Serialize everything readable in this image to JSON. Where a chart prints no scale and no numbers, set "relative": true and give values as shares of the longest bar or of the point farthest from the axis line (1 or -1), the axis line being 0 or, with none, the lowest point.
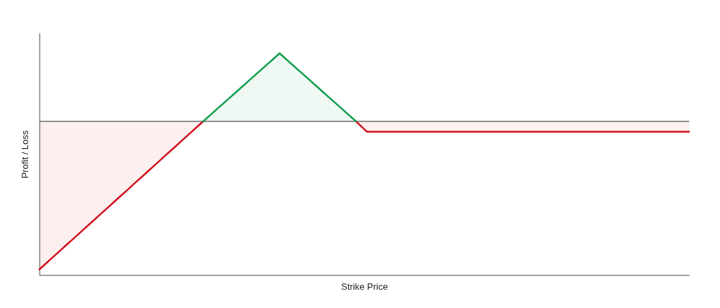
{
  "chart_data": {
    "type": "area",
    "relative": true,
    "xlabel": "Strike Price",
    "ylabel": "Profit / Loss",
    "tick_labels": false,
    "categories": [
      null,
      null,
      null,
      null,
      null,
      null,
      null,
      null,
      null,
      null,
      null,
      null,
      null,
      null,
      null,
      null,
      null,
      null,
      null,
      null,
      null,
      null,
      null,
      null,
      null,
      null,
      null,
      null,
      null,
      null,
      null,
      null,
      null,
      null,
      null,
      null,
      null,
      null,
      null,
      null,
      null,
      null,
      null,
      null,
      null,
      null,
      null,
      null,
      null,
      null,
      null,
      null,
      null,
      null,
      null,
      null,
      null,
      null,
      null,
      null,
      null,
      null,
      null,
      null,
      null,
      null,
      null,
      null,
      null,
      null,
      null,
      null,
      null,
      null,
      null,
      null,
      null,
      null,
      null,
      null,
      null,
      null,
      null,
      null,
      null,
      null,
      null,
      null,
      null,
      null,
      null,
      null,
      null,
      null,
      null,
      null,
      null,
      null,
      null,
      null,
      null,
      null,
      null,
      null,
      null,
      null,
      null,
      null,
      null,
      null,
      null,
      null,
      null,
      null,
      null,
      null,
      null,
      null,
      null,
      null
    ],
    "series": [
      {
        "color": "#d0111b",
        "values": [
          -1,
          -0.967,
          -0.933,
          -0.9,
          -0.867,
          -0.833,
          -0.8,
          -0.767,
          -0.733,
          -0.7,
          -0.667,
          -0.633,
          -0.6,
          -0.567,
          -0.533,
          -0.5,
          -0.467,
          -0.433,
          -0.4,
          -0.367,
          -0.333,
          -0.3,
          -0.267,
          -0.233,
          -0.2,
          -0.167,
          -0.133,
          -0.1,
          -0.067,
          -0.033,
          0,
          null,
          null,
          null,
          null,
          null,
          null,
          null,
          null,
          null,
          null,
          null,
          null,
          null,
          null,
          null,
          null,
          null,
          null,
          null,
          null,
          null,
          null,
          null,
          null,
          null,
          null,
          null,
          0,
          -0.035,
          -0.07,
          -0.07,
          -0.07,
          -0.07,
          -0.07,
          -0.07,
          -0.07,
          -0.07,
          -0.07,
          -0.07,
          -0.07,
          -0.07,
          -0.07,
          -0.07,
          -0.07,
          -0.07,
          -0.07,
          -0.07,
          -0.07,
          -0.07,
          -0.07,
          -0.07,
          -0.07,
          -0.07,
          -0.07,
          -0.07,
          -0.07,
          -0.07,
          -0.07,
          -0.07,
          -0.07,
          -0.07,
          -0.07,
          -0.07,
          -0.07,
          -0.07,
          -0.07,
          -0.07,
          -0.07,
          -0.07,
          -0.07,
          -0.07,
          -0.07,
          -0.07,
          -0.07,
          -0.07,
          -0.07,
          -0.07,
          -0.07,
          -0.07,
          -0.07,
          -0.07,
          -0.07,
          -0.07,
          -0.07,
          -0.07,
          -0.07,
          -0.07,
          -0.07,
          -0.07
        ]
      },
      {
        "color": "#0e9d4e",
        "values": [
          null,
          null,
          null,
          null,
          null,
          null,
          null,
          null,
          null,
          null,
          null,
          null,
          null,
          null,
          null,
          null,
          null,
          null,
          null,
          null,
          null,
          null,
          null,
          null,
          null,
          null,
          null,
          null,
          null,
          null,
          0,
          0.033,
          0.066,
          0.099,
          0.131,
          0.164,
          0.197,
          0.23,
          0.263,
          0.296,
          0.329,
          0.361,
          0.394,
          0.427,
          0.46,
          0.427,
          0.394,
          0.361,
          0.329,
          0.296,
          0.263,
          0.23,
          0.197,
          0.164,
          0.131,
          0.099,
          0.066,
          0.033,
          0,
          null,
          null,
          null,
          null,
          null,
          null,
          null,
          null,
          null,
          null,
          null,
          null,
          null,
          null,
          null,
          null,
          null,
          null,
          null,
          null,
          null,
          null,
          null,
          null,
          null,
          null,
          null,
          null,
          null,
          null,
          null,
          null,
          null,
          null,
          null,
          null,
          null,
          null,
          null,
          null,
          null,
          null,
          null,
          null,
          null,
          null,
          null,
          null,
          null,
          null,
          null,
          null,
          null,
          null,
          null,
          null,
          null,
          null,
          null,
          null,
          null
        ]
      }
    ],
    "ref_lines": [
      {
        "axis": "y",
        "value": 0,
        "color": "#6b6b6b"
      }
    ]
  }
}
